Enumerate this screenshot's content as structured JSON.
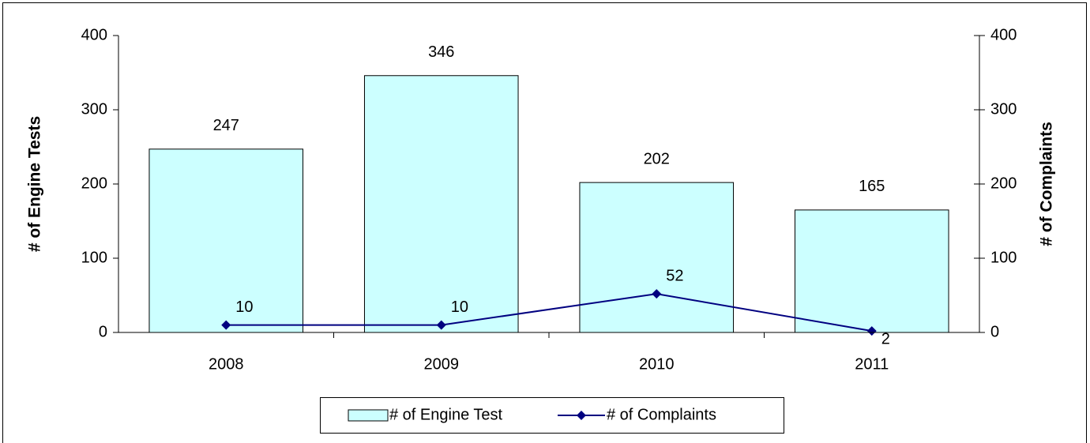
{
  "chart_data": {
    "type": "bar",
    "categories": [
      "2008",
      "2009",
      "2010",
      "2011"
    ],
    "series": [
      {
        "name": "# of Engine Test",
        "type": "bar",
        "color": "#ccffff",
        "values": [
          247,
          346,
          202,
          165
        ]
      },
      {
        "name": "# of Complaints",
        "type": "line",
        "axis": "y2",
        "color": "#000080",
        "values": [
          10,
          10,
          52,
          2
        ]
      }
    ],
    "y_label": "# of Engine Tests",
    "y2_label": "# of Complaints",
    "ylim": [
      0,
      400
    ],
    "yticks": [
      0,
      100,
      200,
      300,
      400
    ],
    "y2lim": [
      0,
      400
    ],
    "y2ticks": [
      0,
      100,
      200,
      300,
      400
    ],
    "legend": "bottom",
    "grid": false
  }
}
